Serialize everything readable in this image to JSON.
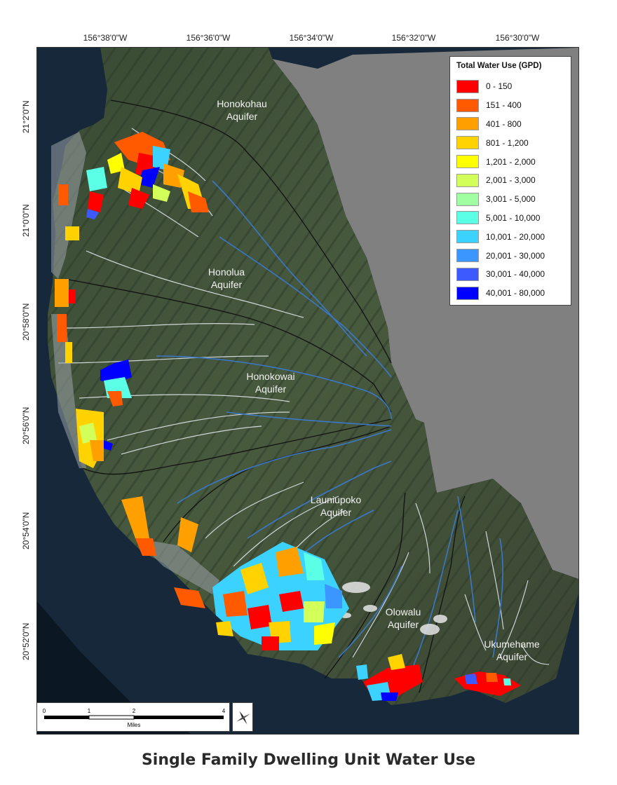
{
  "map": {
    "caption": "Single Family Dwelling Unit Water Use",
    "longitude_labels": [
      "156°38'0\"W",
      "156°36'0\"W",
      "156°34'0\"W",
      "156°32'0\"W",
      "156°30'0\"W"
    ],
    "latitude_labels": [
      "21°2'0\"N",
      "21°0'0\"N",
      "20°58'0\"N",
      "20°56'0\"N",
      "20°54'0\"N",
      "20°52'0\"N"
    ],
    "aquifers": [
      {
        "line1": "Honokohau",
        "line2": "Aquifer"
      },
      {
        "line1": "Honolua",
        "line2": "Aquifer"
      },
      {
        "line1": "Honokowai",
        "line2": "Aquifer"
      },
      {
        "line1": "Launiupoko",
        "line2": "Aquifer"
      },
      {
        "line1": "Olowalu",
        "line2": "Aquifer"
      },
      {
        "line1": "Ukumehame",
        "line2": "Aquifer"
      }
    ],
    "legend": {
      "title": "Total Water Use (GPD)",
      "classes": [
        {
          "label": "0 - 150",
          "color": "#ff0000"
        },
        {
          "label": "151 - 400",
          "color": "#ff5a00"
        },
        {
          "label": "401 - 800",
          "color": "#ffa000"
        },
        {
          "label": "801 - 1,200",
          "color": "#ffd200"
        },
        {
          "label": "1,201 - 2,000",
          "color": "#ffff00"
        },
        {
          "label": "2,001 - 3,000",
          "color": "#d2ff5a"
        },
        {
          "label": "3,001 - 5,000",
          "color": "#a0ffa0"
        },
        {
          "label": "5,001 - 10,000",
          "color": "#5affe6"
        },
        {
          "label": "10,001 - 20,000",
          "color": "#3cd2ff"
        },
        {
          "label": "20,001 - 30,000",
          "color": "#3c96ff"
        },
        {
          "label": "30,001 - 40,000",
          "color": "#3c5aff"
        },
        {
          "label": "40,001 - 80,000",
          "color": "#0000ff"
        }
      ]
    },
    "scale_bar": {
      "ticks": [
        "0",
        "1",
        "2",
        "4"
      ],
      "unit": "Miles"
    },
    "colors": {
      "ocean": "#16283a",
      "land_dark": "#2b3a2a",
      "land_light": "#4a5a3e",
      "no_data": "#808080",
      "stream": "#3b78c8",
      "boundary": "#111111"
    }
  }
}
